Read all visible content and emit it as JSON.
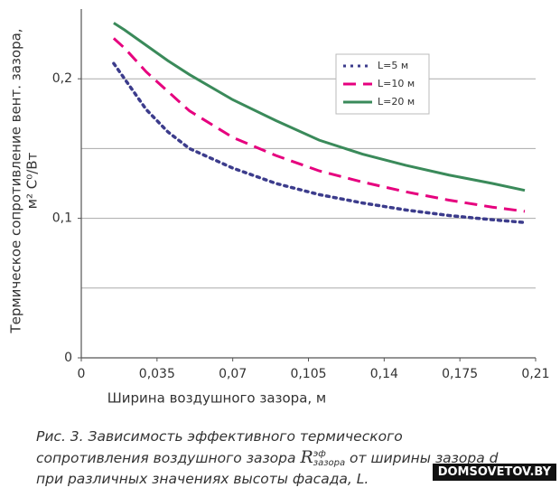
{
  "chart_data": {
    "type": "line",
    "y_label_lines": [
      "Термическое сопротивление вент. зазора,",
      "м² С⁰/Вт"
    ],
    "x_label": "Ширина воздушного зазора, м",
    "x": [
      0.015,
      0.02,
      0.03,
      0.04,
      0.05,
      0.07,
      0.09,
      0.11,
      0.13,
      0.15,
      0.17,
      0.19,
      0.205
    ],
    "series": [
      {
        "name": "L=5 м",
        "color": "#3c3c8c",
        "style": "dotted",
        "values": [
          0.211,
          0.2,
          0.178,
          0.162,
          0.15,
          0.136,
          0.125,
          0.117,
          0.111,
          0.106,
          0.102,
          0.099,
          0.097
        ]
      },
      {
        "name": "L=10 м",
        "color": "#e6007e",
        "style": "dashed",
        "values": [
          0.229,
          0.222,
          0.205,
          0.191,
          0.177,
          0.158,
          0.145,
          0.134,
          0.126,
          0.119,
          0.113,
          0.108,
          0.105
        ]
      },
      {
        "name": "L=20 м",
        "color": "#3a8a5a",
        "style": "solid",
        "values": [
          0.24,
          0.235,
          0.224,
          0.213,
          0.203,
          0.185,
          0.17,
          0.156,
          0.146,
          0.138,
          0.131,
          0.125,
          0.12
        ]
      }
    ],
    "xlim": [
      0,
      0.21
    ],
    "xticks": [
      0,
      {
        "value": 0.035,
        "label": "0,035"
      },
      {
        "value": 0.07,
        "label": "0,07"
      },
      {
        "value": 0.105,
        "label": "0,105"
      },
      {
        "value": 0.14,
        "label": "0,14"
      },
      {
        "value": 0.175,
        "label": "0,175"
      },
      {
        "value": 0.21,
        "label": "0,21"
      }
    ],
    "ylim": [
      0,
      0.25
    ],
    "yticks": [
      0,
      {
        "value": 0.1,
        "label": "0,1"
      },
      {
        "value": 0.2,
        "label": "0,2"
      }
    ],
    "ygrid": [
      0.05,
      0.1,
      0.15,
      0.2
    ],
    "grid": true,
    "legend": "upper right"
  },
  "caption": {
    "line1": "Рис. 3. Зависимость эффективного термического",
    "line2_before": "сопротивления воздушного зазора ",
    "symbol": "R",
    "sup": "эф",
    "sub": "зазора",
    "line2_after": " от ширины зазора d",
    "line3": "при различных значениях высоты фасада, L."
  },
  "watermark": "DOMSOVETOV.BY"
}
